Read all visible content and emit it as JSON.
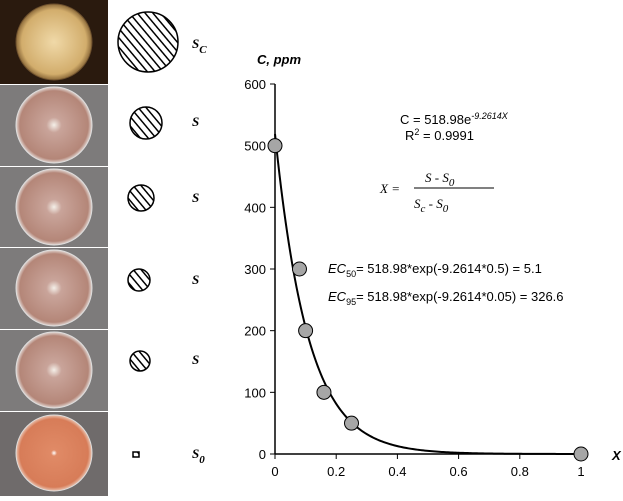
{
  "specimens": [
    {
      "main": "S",
      "sub": "C"
    },
    {
      "main": "S"
    },
    {
      "main": "S"
    },
    {
      "main": "S"
    },
    {
      "main": "S"
    },
    {
      "main": "S",
      "sub": "0"
    }
  ],
  "chart_data": {
    "type": "scatter",
    "x": [
      0,
      0.08,
      0.1,
      0.16,
      0.25,
      1
    ],
    "values": [
      500,
      300,
      200,
      100,
      50,
      0
    ],
    "color": "#a6a6a6",
    "xlim": [
      0,
      1
    ],
    "ylim": [
      0,
      600
    ],
    "xticks": [
      0,
      0.2,
      0.4,
      0.6,
      0.8,
      1
    ],
    "yticks": [
      0,
      100,
      200,
      300,
      400,
      500,
      600
    ],
    "x_label": "X",
    "y_label": "C, ppm",
    "fit": {
      "a": 518.98,
      "b": -9.2614
    },
    "annotations": {
      "fit_equation": {
        "base": "C = 518.98e",
        "exponent": "-9.2614X"
      },
      "r_squared": {
        "base": "R",
        "sup": "2",
        "rest": " = 0.9991"
      },
      "x_formula": {
        "lhs": "X =",
        "num": "S - S",
        "num_sub": "0",
        "den_a": "S",
        "den_a_sub": "c",
        "den_b": " - S",
        "den_b_sub": "0"
      },
      "ec50": {
        "base": "EC",
        "sub": "50",
        "rest": "= 518.98*exp(-9.2614*0.5) = 5.1"
      },
      "ec95": {
        "base": "EC",
        "sub": "95",
        "rest": "= 518.98*exp(-9.2614*0.05) = 326.6"
      }
    }
  }
}
